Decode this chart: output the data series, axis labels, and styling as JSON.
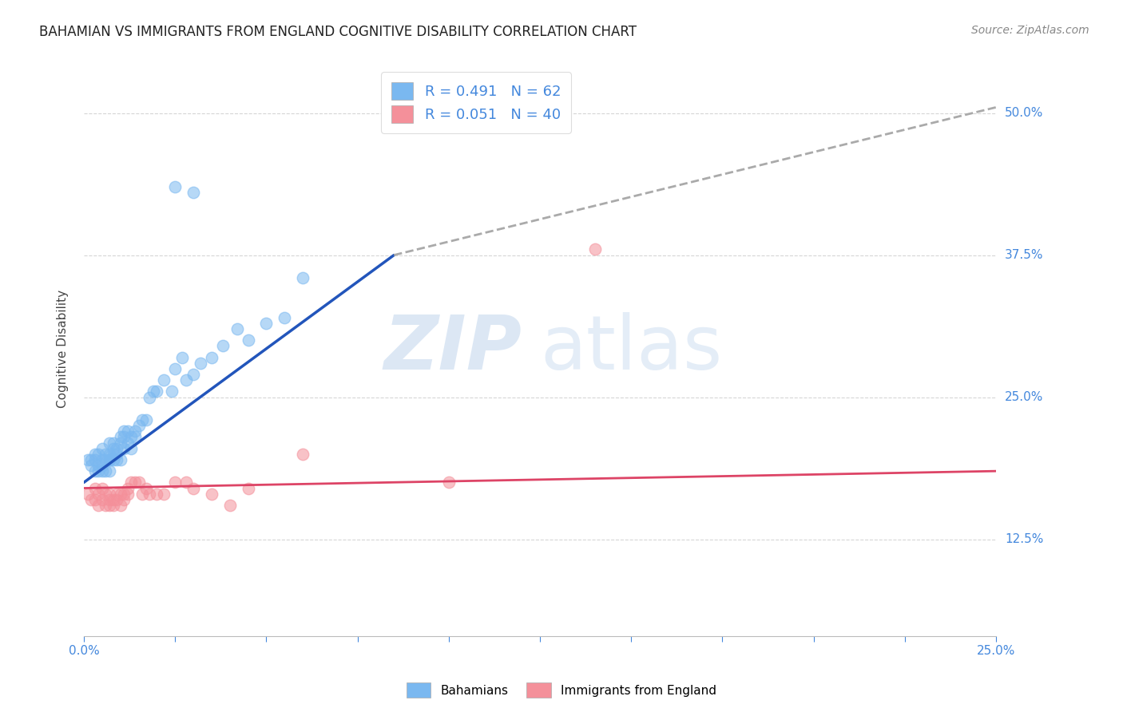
{
  "title": "BAHAMIAN VS IMMIGRANTS FROM ENGLAND COGNITIVE DISABILITY CORRELATION CHART",
  "source": "Source: ZipAtlas.com",
  "ylabel": "Cognitive Disability",
  "yticks": [
    "12.5%",
    "25.0%",
    "37.5%",
    "50.0%"
  ],
  "ytick_vals": [
    0.125,
    0.25,
    0.375,
    0.5
  ],
  "xlim": [
    0.0,
    0.25
  ],
  "ylim": [
    0.04,
    0.545
  ],
  "color_blue": "#7ab8f0",
  "color_pink": "#f4909a",
  "color_blue_line": "#2255bb",
  "color_pink_line": "#dd4466",
  "color_dash": "#aaaaaa",
  "color_blue_text": "#4488dd",
  "legend_label1": "R = 0.491   N = 62",
  "legend_label2": "R = 0.051   N = 40",
  "bahamian_x": [
    0.001,
    0.002,
    0.002,
    0.003,
    0.003,
    0.003,
    0.004,
    0.004,
    0.004,
    0.005,
    0.005,
    0.005,
    0.005,
    0.006,
    0.006,
    0.006,
    0.007,
    0.007,
    0.007,
    0.007,
    0.007,
    0.008,
    0.008,
    0.008,
    0.008,
    0.009,
    0.009,
    0.009,
    0.01,
    0.01,
    0.01,
    0.011,
    0.011,
    0.011,
    0.012,
    0.012,
    0.013,
    0.013,
    0.014,
    0.014,
    0.015,
    0.016,
    0.017,
    0.018,
    0.019,
    0.02,
    0.022,
    0.024,
    0.025,
    0.027,
    0.028,
    0.03,
    0.032,
    0.035,
    0.038,
    0.042,
    0.045,
    0.05,
    0.055,
    0.06,
    0.025,
    0.03
  ],
  "bahamian_y": [
    0.195,
    0.195,
    0.19,
    0.2,
    0.195,
    0.185,
    0.2,
    0.19,
    0.185,
    0.205,
    0.195,
    0.19,
    0.185,
    0.195,
    0.2,
    0.185,
    0.195,
    0.2,
    0.195,
    0.185,
    0.21,
    0.2,
    0.195,
    0.21,
    0.205,
    0.205,
    0.2,
    0.195,
    0.215,
    0.21,
    0.195,
    0.22,
    0.215,
    0.205,
    0.22,
    0.21,
    0.215,
    0.205,
    0.22,
    0.215,
    0.225,
    0.23,
    0.23,
    0.25,
    0.255,
    0.255,
    0.265,
    0.255,
    0.275,
    0.285,
    0.265,
    0.27,
    0.28,
    0.285,
    0.295,
    0.31,
    0.3,
    0.315,
    0.32,
    0.355,
    0.435,
    0.43
  ],
  "england_x": [
    0.001,
    0.002,
    0.003,
    0.003,
    0.004,
    0.004,
    0.005,
    0.005,
    0.006,
    0.006,
    0.007,
    0.007,
    0.007,
    0.008,
    0.008,
    0.009,
    0.009,
    0.01,
    0.01,
    0.011,
    0.011,
    0.012,
    0.012,
    0.013,
    0.014,
    0.015,
    0.016,
    0.017,
    0.018,
    0.02,
    0.022,
    0.025,
    0.028,
    0.03,
    0.035,
    0.04,
    0.045,
    0.06,
    0.1,
    0.14
  ],
  "england_y": [
    0.165,
    0.16,
    0.17,
    0.16,
    0.165,
    0.155,
    0.17,
    0.16,
    0.165,
    0.155,
    0.16,
    0.165,
    0.155,
    0.16,
    0.155,
    0.16,
    0.165,
    0.155,
    0.165,
    0.165,
    0.16,
    0.165,
    0.17,
    0.175,
    0.175,
    0.175,
    0.165,
    0.17,
    0.165,
    0.165,
    0.165,
    0.175,
    0.175,
    0.17,
    0.165,
    0.155,
    0.17,
    0.2,
    0.175,
    0.38
  ],
  "blue_line_x": [
    0.0,
    0.085
  ],
  "blue_line_y": [
    0.175,
    0.375
  ],
  "dash_line_x": [
    0.085,
    0.25
  ],
  "dash_line_y": [
    0.375,
    0.505
  ],
  "pink_line_x": [
    0.0,
    0.25
  ],
  "pink_line_y": [
    0.17,
    0.185
  ]
}
